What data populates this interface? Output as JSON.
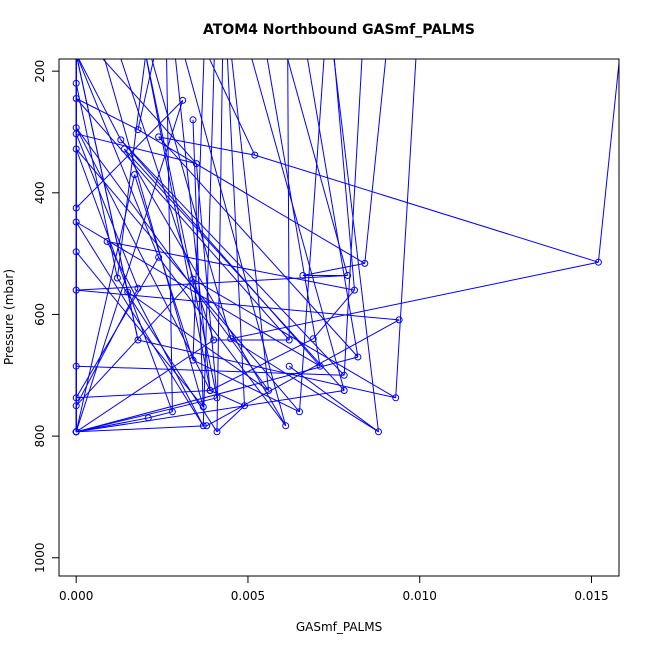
{
  "chart_data": {
    "type": "scatter",
    "title": "ATOM4 Northbound GASmf_PALMS",
    "xlabel": "GASmf_PALMS",
    "ylabel": "Pressure (mbar)",
    "xlim": [
      -0.0005,
      0.0158
    ],
    "ylim": [
      1030,
      180
    ],
    "y_reversed": true,
    "x_ticks": [
      "0.000",
      "0.005",
      "0.010",
      "0.015"
    ],
    "y_ticks": [
      "200",
      "400",
      "600",
      "800",
      "1000"
    ],
    "grid": false,
    "legend": "none",
    "color": "#0000ff",
    "marker": "open-circle",
    "connected_lines": true,
    "series": [
      {
        "x": [
          0.0,
          0.0,
          0.0,
          0.0,
          0.0,
          0.0,
          0.0,
          0.0,
          0.0,
          0.0,
          0.0,
          0.0,
          0.0,
          0.0,
          0.0,
          0.0,
          0.0,
          0.0009,
          0.0012,
          0.0013,
          0.0014,
          0.0015,
          0.0017,
          0.0018,
          0.0018,
          0.0018,
          0.0021,
          0.0024,
          0.0024,
          0.0028,
          0.0031,
          0.0034,
          0.0034,
          0.0034,
          0.0035,
          0.0037,
          0.0037,
          0.0038,
          0.0039,
          0.0039,
          0.004,
          0.0041,
          0.0041,
          0.0045,
          0.0049,
          0.0052,
          0.0056,
          0.0061,
          0.0062,
          0.0062,
          0.0065,
          0.0066,
          0.0069,
          0.0071,
          0.0078,
          0.0078,
          0.0079,
          0.0081,
          0.0082,
          0.0084,
          0.0088,
          0.0093,
          0.0094,
          0.0152
        ],
        "y": [
          220,
          245,
          293,
          303,
          328,
          425,
          448,
          497,
          560,
          685,
          737,
          750,
          793,
          793,
          793,
          793,
          793,
          480,
          540,
          313,
          328,
          563,
          370,
          296,
          557,
          642,
          770,
          308,
          506,
          760,
          248,
          280,
          542,
          675,
          352,
          752,
          783,
          783,
          725,
          725,
          642,
          737,
          793,
          640,
          750,
          338,
          725,
          783,
          685,
          642,
          760,
          536,
          640,
          685,
          700,
          725,
          536,
          560,
          670,
          516,
          793,
          737,
          609,
          514
        ]
      }
    ]
  }
}
